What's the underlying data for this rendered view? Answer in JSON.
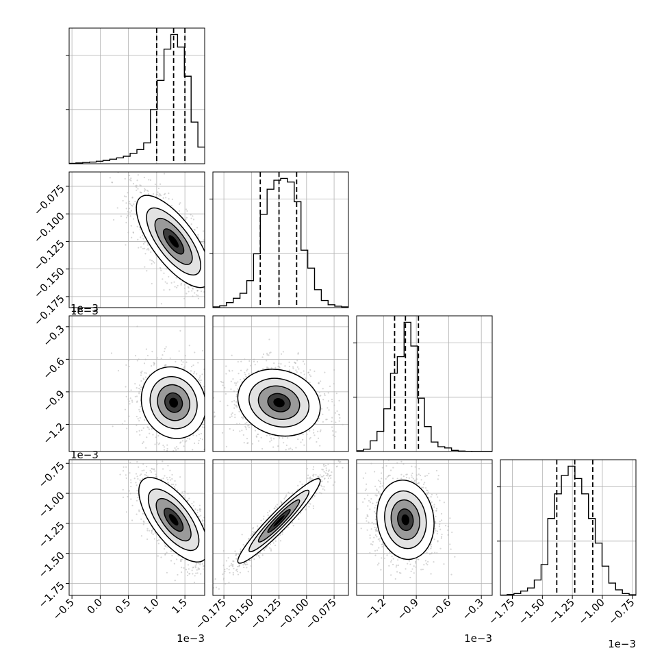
{
  "chart_data": {
    "type": "corner",
    "n_params": 4,
    "grid": true,
    "parameters": [
      {
        "index": 0,
        "range": [
          -0.55,
          1.85
        ],
        "ticks": [
          -0.5,
          0.0,
          0.5,
          1.0,
          1.5
        ],
        "tick_labels": [
          "−0.5",
          "0.0",
          "0.5",
          "1.0",
          "1.5"
        ],
        "offset_label": "1e−3",
        "quantiles": [
          1.0,
          1.3,
          1.5
        ]
      },
      {
        "index": 1,
        "range": [
          -0.185,
          -0.062
        ],
        "ticks": [
          -0.175,
          -0.15,
          -0.125,
          -0.1,
          -0.075
        ],
        "tick_labels": [
          "−0.175",
          "−0.150",
          "−0.125",
          "−0.100",
          "−0.075"
        ],
        "offset_label": "",
        "quantiles": [
          -0.142,
          -0.125,
          -0.109
        ]
      },
      {
        "index": 2,
        "range": [
          -1.45,
          -0.2
        ],
        "ticks": [
          -1.2,
          -0.9,
          -0.6,
          -0.3
        ],
        "tick_labels": [
          "−1.2",
          "−0.9",
          "−0.6",
          "−0.3"
        ],
        "offset_label": "1e−3",
        "quantiles": [
          -1.1,
          -1.0,
          -0.88
        ]
      },
      {
        "index": 3,
        "range": [
          -1.85,
          -0.72
        ],
        "ticks": [
          -1.75,
          -1.5,
          -1.25,
          -1.0,
          -0.75
        ],
        "tick_labels": [
          "−1.75",
          "−1.50",
          "−1.25",
          "−1.00",
          "−0.75"
        ],
        "offset_label": "1e−3",
        "quantiles": [
          -1.38,
          -1.23,
          -1.08
        ]
      }
    ],
    "histograms": [
      {
        "param": 0,
        "bins": [
          -0.55,
          -0.43,
          -0.31,
          -0.19,
          -0.07,
          0.05,
          0.17,
          0.29,
          0.41,
          0.53,
          0.65,
          0.77,
          0.89,
          1.01,
          1.13,
          1.25,
          1.37,
          1.49,
          1.61,
          1.73,
          1.85
        ],
        "counts": [
          1,
          2,
          3,
          4,
          6,
          8,
          11,
          14,
          18,
          25,
          34,
          50,
          130,
          200,
          275,
          310,
          280,
          210,
          100,
          40
        ]
      },
      {
        "param": 1,
        "bins": [
          -0.185,
          -0.17885,
          -0.1727,
          -0.16655,
          -0.1604,
          -0.15425,
          -0.1481,
          -0.14195,
          -0.1358,
          -0.12965,
          -0.1235,
          -0.11735,
          -0.1112,
          -0.10505,
          -0.0989,
          -0.09275,
          -0.0866,
          -0.08045,
          -0.0743,
          -0.06815,
          -0.062
        ],
        "counts": [
          2,
          5,
          14,
          26,
          40,
          75,
          150,
          260,
          330,
          355,
          360,
          350,
          295,
          160,
          110,
          50,
          20,
          8,
          4,
          2
        ]
      },
      {
        "param": 2,
        "bins": [
          -1.45,
          -1.3875,
          -1.325,
          -1.2625,
          -1.2,
          -1.1375,
          -1.075,
          -1.0125,
          -0.95,
          -0.8875,
          -0.825,
          -0.7625,
          -0.7,
          -0.6375,
          -0.575,
          -0.5125,
          -0.45,
          -0.3875,
          -0.325,
          -0.2625,
          -0.2
        ],
        "counts": [
          3,
          10,
          45,
          85,
          180,
          330,
          400,
          545,
          445,
          225,
          105,
          40,
          20,
          15,
          5,
          2,
          1,
          0,
          0,
          0
        ]
      },
      {
        "param": 3,
        "bins": [
          -1.85,
          -1.7935,
          -1.737,
          -1.6805,
          -1.624,
          -1.5675,
          -1.511,
          -1.4545,
          -1.398,
          -1.3415,
          -1.285,
          -1.2285,
          -1.172,
          -1.1155,
          -1.059,
          -1.0025,
          -0.946,
          -0.8895,
          -0.833,
          -0.7765,
          -0.72
        ],
        "counts": [
          1,
          3,
          6,
          14,
          24,
          50,
          100,
          250,
          330,
          390,
          420,
          380,
          330,
          250,
          170,
          95,
          40,
          18,
          6,
          2
        ]
      }
    ],
    "pairs": [
      {
        "x": 0,
        "y": 1,
        "center": [
          1.3,
          -0.125
        ],
        "sx": 0.3,
        "sy": 0.019,
        "rho": -0.72
      },
      {
        "x": 0,
        "y": 2,
        "center": [
          1.3,
          -1.0
        ],
        "sx": 0.26,
        "sy": 0.15,
        "rho": -0.1
      },
      {
        "x": 1,
        "y": 2,
        "center": [
          -0.125,
          -1.0
        ],
        "sx": 0.017,
        "sy": 0.14,
        "rho": -0.15
      },
      {
        "x": 0,
        "y": 3,
        "center": [
          1.3,
          -1.22
        ],
        "sx": 0.28,
        "sy": 0.16,
        "rho": -0.68
      },
      {
        "x": 1,
        "y": 3,
        "center": [
          -0.125,
          -1.23
        ],
        "sx": 0.017,
        "sy": 0.16,
        "rho": 0.95
      },
      {
        "x": 2,
        "y": 3,
        "center": [
          -1.0,
          -1.22
        ],
        "sx": 0.12,
        "sy": 0.15,
        "rho": -0.1
      }
    ]
  }
}
